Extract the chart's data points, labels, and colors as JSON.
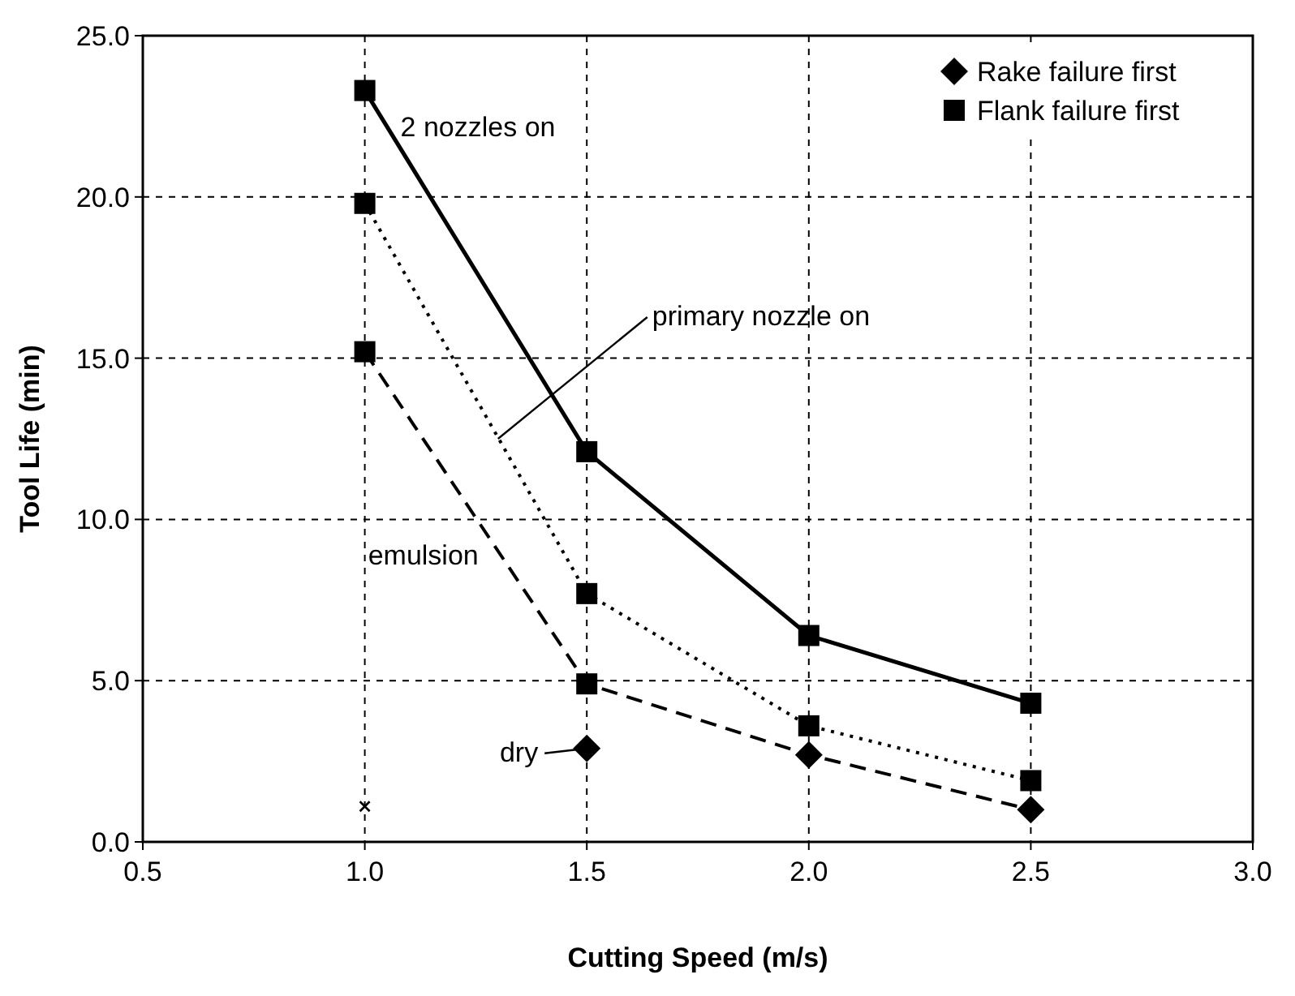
{
  "chart_data": {
    "type": "line",
    "xlabel": "Cutting Speed (m/s)",
    "ylabel": "Tool Life (min)",
    "xlim": [
      0.5,
      3.0
    ],
    "ylim": [
      0,
      25
    ],
    "xticks": [
      {
        "value": 0.5,
        "label": "0.5"
      },
      {
        "value": 1,
        "label": "1.0"
      },
      {
        "value": 1.5,
        "label": "1.5"
      },
      {
        "value": 2,
        "label": "2.0"
      },
      {
        "value": 2.5,
        "label": "2.5"
      },
      {
        "value": 3,
        "label": "3.0"
      }
    ],
    "yticks": [
      {
        "value": 0,
        "label": "0.0"
      },
      {
        "value": 5,
        "label": "5.0"
      },
      {
        "value": 10,
        "label": "10.0"
      },
      {
        "value": 15,
        "label": "15.0"
      },
      {
        "value": 20,
        "label": "20.0"
      },
      {
        "value": 25,
        "label": "25.0"
      }
    ],
    "grid": true,
    "legend": "top right",
    "series": [
      {
        "type": "line",
        "color": "#000000",
        "line_style": "solid",
        "marker": "none",
        "x": [
          1,
          1.5,
          2,
          2.5
        ],
        "values": [
          23.3,
          12.1,
          6.4,
          4.3
        ]
      },
      {
        "type": "line",
        "color": "#000000",
        "line_style": "dotted",
        "marker": "none",
        "x": [
          1,
          1.5,
          2,
          2.5
        ],
        "values": [
          19.8,
          7.7,
          3.6,
          1.9
        ]
      },
      {
        "type": "line",
        "color": "#000000",
        "line_style": "dashed",
        "marker": "none",
        "x": [
          1,
          1.5,
          2,
          2.5
        ],
        "values": [
          15.2,
          4.9,
          2.7,
          1.0
        ]
      },
      {
        "type": "scatter",
        "color": "#000000",
        "marker": "cross",
        "x": [
          1
        ],
        "values": [
          1.1
        ]
      },
      {
        "type": "scatter",
        "name": "Rake failure first",
        "color": "#000000",
        "marker": "diamond",
        "x": [
          1.5,
          2,
          2.5
        ],
        "values": [
          2.9,
          2.7,
          1.0
        ]
      },
      {
        "type": "scatter",
        "name": "Flank failure first",
        "color": "#000000",
        "marker": "square",
        "x": [
          1,
          1.5,
          2,
          2.5,
          1,
          1.5,
          2,
          2.5,
          1,
          1.5
        ],
        "values": [
          23.3,
          12.1,
          6.4,
          4.3,
          19.8,
          7.7,
          3.6,
          1.9,
          15.2,
          4.9
        ]
      }
    ],
    "annotations": [
      {
        "text": "2 nozzles on",
        "x": 1.0,
        "y": 23.3
      },
      {
        "text": "primary nozzle on",
        "x": 1.3,
        "y": 12.5
      },
      {
        "text": "emulsion",
        "x": 1.3,
        "y": 9.0
      },
      {
        "text": "dry",
        "x": 1.5,
        "y": 2.9
      }
    ]
  }
}
